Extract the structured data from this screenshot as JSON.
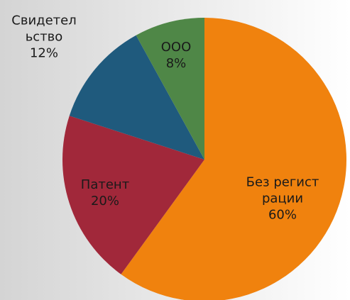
{
  "chart_data": {
    "type": "pie",
    "categories": [
      "Без регистрации",
      "Патент",
      "Свидетельство",
      "ООО"
    ],
    "values": [
      60,
      20,
      12,
      8
    ],
    "value_labels": [
      "60%",
      "20%",
      "12%",
      "8%"
    ],
    "colors": [
      "#f0820e",
      "#a1283a",
      "#1f5a7d",
      "#4f8747"
    ]
  }
}
